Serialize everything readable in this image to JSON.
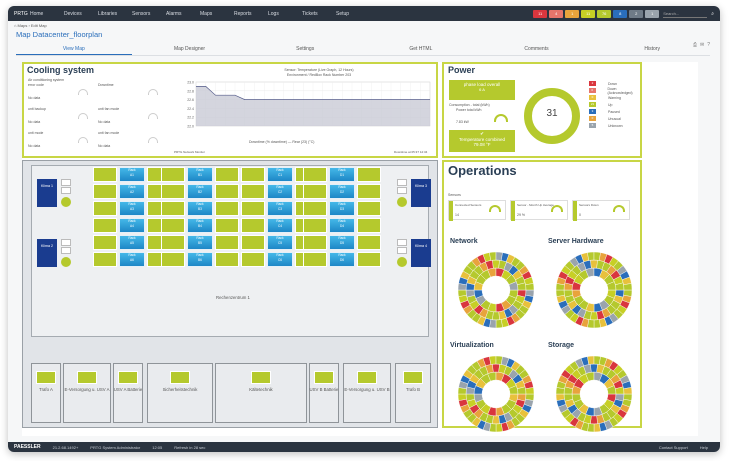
{
  "app": {
    "logo": "PRTG"
  },
  "nav": [
    "Home",
    "Devices",
    "Libraries",
    "Sensors",
    "Alarms",
    "Maps",
    "Reports",
    "Logs",
    "Tickets",
    "Setup"
  ],
  "status_badges": [
    {
      "label": "11",
      "color": "#d9363e"
    },
    {
      "label": "4",
      "color": "#e6756b"
    },
    {
      "label": "1",
      "color": "#e8a33c"
    },
    {
      "label": "11",
      "color": "#c7cf25"
    },
    {
      "label": "76",
      "color": "#b5c92d"
    },
    {
      "label": "8",
      "color": "#2a6ebb"
    },
    {
      "label": "2",
      "color": "#6f7b87"
    },
    {
      "label": "1",
      "color": "#9aa4ad"
    }
  ],
  "search_placeholder": "Search...",
  "breadcrumb": "Maps  ›  Edit Map",
  "page_title": "Map Datacenter_floorplan",
  "tabs": [
    "View Map",
    "Map Designer",
    "Settings",
    "Get HTML",
    "Comments",
    "History"
  ],
  "cooling": {
    "title": "Cooling system",
    "subtitle": "Air conditioning system",
    "fields": [
      {
        "label": "error code",
        "value": "No data"
      },
      {
        "label": "Downtime",
        "value": ""
      },
      {
        "label": "unit backup",
        "value": "No data"
      },
      {
        "label": "unit fan mode",
        "value": "No data"
      },
      {
        "label": "unit mode",
        "value": "No data"
      },
      {
        "label": "unit fan mode",
        "value": "No data"
      }
    ],
    "chart_title": "Sensor: Temperature (Live Graph, 12 Hours)",
    "chart_sub": "Environment / RedBox Rack Number 203",
    "chart_legend": "Downtime (% downtime)  —  Rear (23) (°C)",
    "chart_foot_left": "PRTG Network Monitor",
    "chart_foot_right": "Downtime at 05:37 12:34"
  },
  "chart_data": {
    "type": "area",
    "title": "Sensor: Temperature (Live Graph, 12 Hours)",
    "ylabel": "°C",
    "ylim": [
      22.0,
      23.0
    ],
    "yticks": [
      "23.0",
      "22.8",
      "22.6",
      "22.4",
      "22.2",
      "22.0"
    ],
    "series": [
      {
        "name": "Rear (23) (°C)",
        "values": [
          22.9,
          22.9,
          22.7,
          22.7,
          22.7,
          22.6,
          22.6,
          22.6,
          22.6,
          22.6,
          22.6,
          22.6,
          22.6,
          22.6,
          22.6,
          22.6,
          22.6,
          22.6,
          22.6,
          22.6,
          22.6,
          22.6,
          22.6,
          22.6,
          22.6
        ]
      }
    ]
  },
  "power": {
    "title": "Power",
    "phase_title": "phase load overall",
    "phase_value": "6 A",
    "consumption_label": "Consumption - total (kWh)",
    "consumption_sub": "Power total kWh",
    "consumption_value": "7.83 kW",
    "temp_title": "Temperature combined",
    "temp_value": "79.08 °F",
    "donut_value": "31",
    "legend": [
      {
        "count": "2",
        "label": "Down",
        "color": "#d9363e"
      },
      {
        "count": "0",
        "label": "Down (Acknowledged)",
        "color": "#e6756b"
      },
      {
        "count": "0",
        "label": "Warning",
        "color": "#e8c13c"
      },
      {
        "count": "21",
        "label": "Up",
        "color": "#b5c92d"
      },
      {
        "count": "3",
        "label": "Paused",
        "color": "#2a6ebb"
      },
      {
        "count": "0",
        "label": "Unusual",
        "color": "#e8a33c"
      },
      {
        "count": "5",
        "label": "Unknown",
        "color": "#9aa4ad"
      }
    ]
  },
  "operations": {
    "title": "Operations",
    "sensors_label": "Sensors",
    "gauges": [
      {
        "label": "Connected Sensors",
        "value": "14"
      },
      {
        "label": "Sensor - Month Up Average",
        "value": "29 %"
      },
      {
        "label": "Sensors Down",
        "value": "0"
      }
    ],
    "sections": [
      "Network",
      "Server Hardware",
      "Virtualization",
      "Storage"
    ]
  },
  "floor": {
    "racks": [
      [
        "Rack A1",
        "Rack A2",
        "Rack A3",
        "Rack A4",
        "Rack A5",
        "Rack A6"
      ],
      [
        "Rack B1",
        "Rack B2",
        "Rack B3",
        "Rack B4",
        "Rack B5",
        "Rack B6"
      ],
      [
        "Rack C1",
        "Rack C2",
        "Rack C3",
        "Rack C4",
        "Rack C5",
        "Rack C6"
      ],
      [
        "Rack D1",
        "Rack D2",
        "Rack D3",
        "Rack D4",
        "Rack D5",
        "Rack D6"
      ]
    ],
    "klima": [
      "Klima 1",
      "Klima 2",
      "Klima 3",
      "Klima 4"
    ],
    "room_label": "Rechenzentrum 1",
    "rooms": [
      "Trafo A",
      "E-Versorgung u. USV A",
      "USV A Batterie",
      "Sicherheitstechnik",
      "Kältetechnik",
      "USV B Batterie",
      "E-Versorgung u. USV B",
      "Trafo B"
    ]
  },
  "footer": {
    "brand": "PAESSLER",
    "version": "21.2.68.1492+",
    "product": "PRTG System Administrator",
    "time": "12:05",
    "refresh": "Refresh in 28 sec",
    "support": "Contact Support",
    "help": "Help"
  }
}
